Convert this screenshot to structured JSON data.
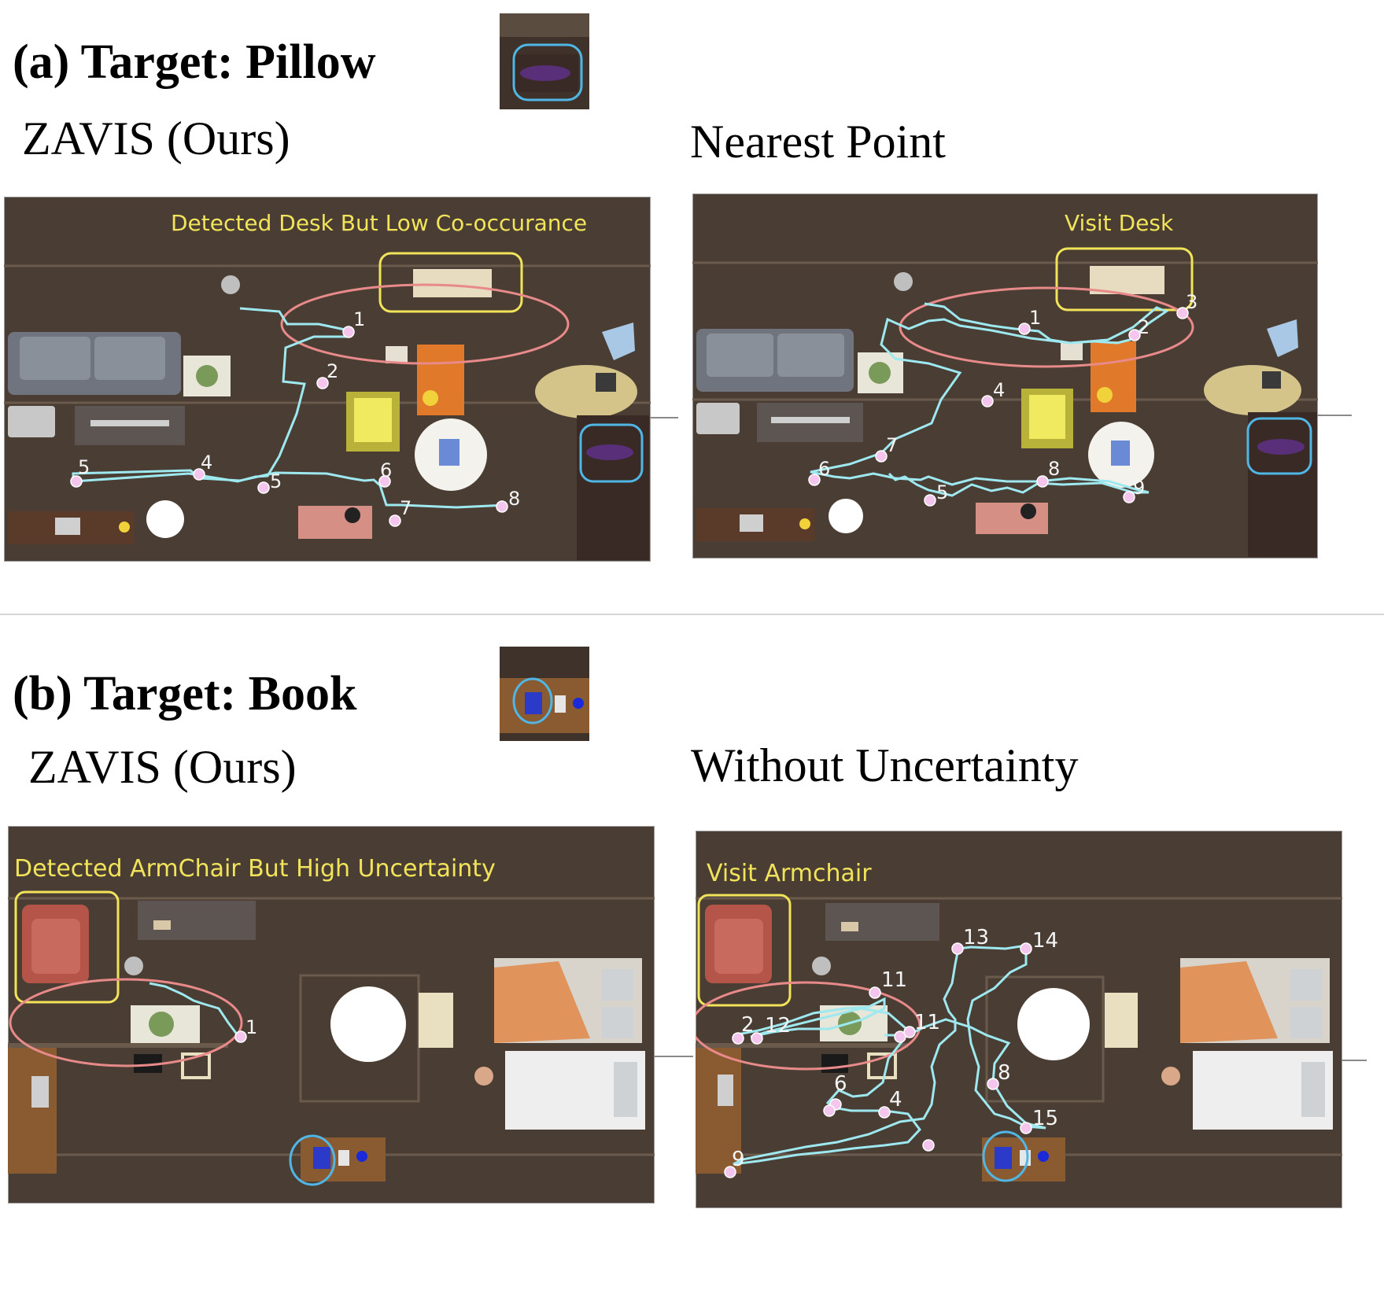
{
  "figure_a": {
    "title": "(a) Target:  Pillow",
    "left_method": "ZAVIS (Ours)",
    "right_method": "Nearest Point",
    "left_annotation": "Detected Desk But Low Co-occurance",
    "right_annotation": "Visit Desk",
    "left_steps": [
      "1",
      "2",
      "4",
      "5",
      "5",
      "6",
      "7",
      "8"
    ],
    "right_steps": [
      "1",
      "2",
      "3",
      "4",
      "5",
      "6",
      "7",
      "8",
      "9"
    ]
  },
  "figure_b": {
    "title": "(b) Target:  Book",
    "left_method": "ZAVIS (Ours)",
    "right_method": "Without Uncertainty",
    "left_annotation": "Detected ArmChair But High Uncertainty",
    "right_annotation": "Visit Armchair",
    "left_steps": [
      "1"
    ],
    "right_steps": [
      "2",
      "11",
      "11",
      "12",
      "4",
      "6",
      "8",
      "9",
      "13",
      "14",
      "15"
    ]
  },
  "colors": {
    "floor": "#4a3d33",
    "path": "#9ee8f0",
    "waypoint": "#f4c6ee",
    "yellow_box": "#f2e45a",
    "red_ellipse": "#e88a8a",
    "blue_box": "#4fb6e6"
  }
}
